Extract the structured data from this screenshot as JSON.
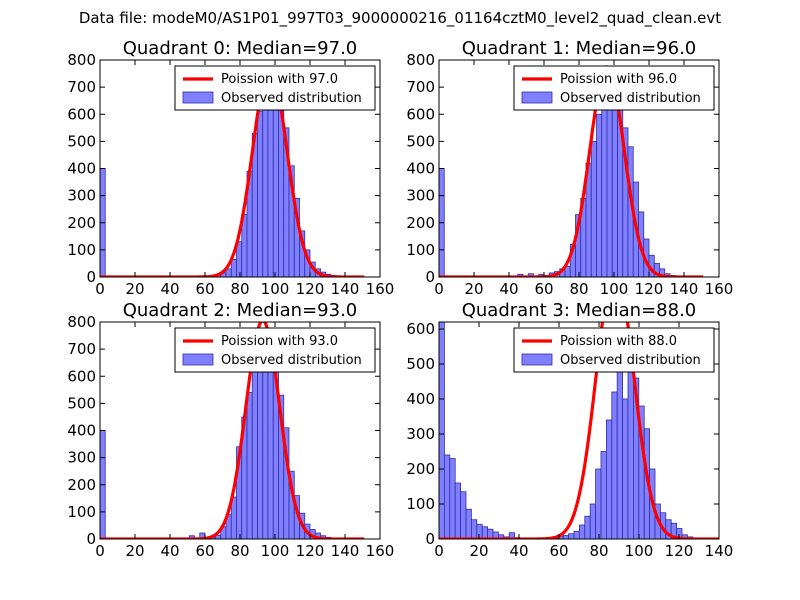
{
  "figure": {
    "suptitle": "Data file: modeM0/AS1P01_997T03_9000000216_01164cztM0_level2_quad_clean.evt"
  },
  "colors": {
    "bar_fill": "#8080ff",
    "bar_edge": "#2d2daa",
    "line": "#ff0000",
    "axis": "#000000"
  },
  "chart_data": [
    {
      "type": "bar",
      "title": "Quadrant 0: Median=97.0",
      "xlim": [
        0,
        160
      ],
      "ylim": [
        0,
        800
      ],
      "xticks": [
        0,
        20,
        40,
        60,
        80,
        100,
        120,
        140,
        160
      ],
      "yticks": [
        0,
        100,
        200,
        300,
        400,
        500,
        600,
        700,
        800
      ],
      "legend": [
        "Poission with 97.0",
        "Observed distribution"
      ],
      "bin_width": 3,
      "bins": [
        [
          0,
          400
        ],
        [
          3,
          2
        ],
        [
          6,
          1
        ],
        [
          60,
          2
        ],
        [
          63,
          5
        ],
        [
          66,
          8
        ],
        [
          69,
          15
        ],
        [
          72,
          30
        ],
        [
          75,
          65
        ],
        [
          78,
          130
        ],
        [
          81,
          230
        ],
        [
          84,
          390
        ],
        [
          87,
          530
        ],
        [
          90,
          610
        ],
        [
          93,
          700
        ],
        [
          96,
          740
        ],
        [
          99,
          730
        ],
        [
          102,
          680
        ],
        [
          105,
          550
        ],
        [
          108,
          410
        ],
        [
          111,
          290
        ],
        [
          114,
          170
        ],
        [
          117,
          100
        ],
        [
          120,
          55
        ],
        [
          123,
          30
        ],
        [
          126,
          18
        ],
        [
          129,
          10
        ],
        [
          132,
          6
        ],
        [
          135,
          4
        ],
        [
          138,
          3
        ],
        [
          141,
          1
        ]
      ],
      "poisson_mean": 97.0,
      "poisson_peak": 770,
      "poisson_x": [
        0,
        151
      ]
    },
    {
      "type": "bar",
      "title": "Quadrant 1: Median=96.0",
      "xlim": [
        0,
        160
      ],
      "ylim": [
        0,
        800
      ],
      "xticks": [
        0,
        20,
        40,
        60,
        80,
        100,
        120,
        140,
        160
      ],
      "yticks": [
        0,
        100,
        200,
        300,
        400,
        500,
        600,
        700,
        800
      ],
      "legend": [
        "Poission with 96.0",
        "Observed distribution"
      ],
      "bin_width": 3,
      "bins": [
        [
          0,
          400
        ],
        [
          3,
          3
        ],
        [
          45,
          10
        ],
        [
          51,
          12
        ],
        [
          57,
          10
        ],
        [
          63,
          15
        ],
        [
          66,
          20
        ],
        [
          69,
          30
        ],
        [
          72,
          40
        ],
        [
          75,
          120
        ],
        [
          78,
          230
        ],
        [
          81,
          290
        ],
        [
          84,
          420
        ],
        [
          87,
          500
        ],
        [
          90,
          600
        ],
        [
          93,
          700
        ],
        [
          96,
          750
        ],
        [
          99,
          720
        ],
        [
          102,
          650
        ],
        [
          105,
          550
        ],
        [
          108,
          480
        ],
        [
          111,
          350
        ],
        [
          114,
          240
        ],
        [
          117,
          140
        ],
        [
          120,
          80
        ],
        [
          123,
          50
        ],
        [
          126,
          30
        ],
        [
          129,
          12
        ],
        [
          132,
          6
        ]
      ],
      "poisson_mean": 96.0,
      "poisson_peak": 775,
      "poisson_x": [
        0,
        151
      ]
    },
    {
      "type": "bar",
      "title": "Quadrant 2: Median=93.0",
      "xlim": [
        0,
        160
      ],
      "ylim": [
        0,
        800
      ],
      "xticks": [
        0,
        20,
        40,
        60,
        80,
        100,
        120,
        140,
        160
      ],
      "yticks": [
        0,
        100,
        200,
        300,
        400,
        500,
        600,
        700,
        800
      ],
      "legend": [
        "Poission with 93.0",
        "Observed distribution"
      ],
      "bin_width": 3,
      "bins": [
        [
          0,
          400
        ],
        [
          3,
          2
        ],
        [
          51,
          12
        ],
        [
          57,
          22
        ],
        [
          60,
          2
        ],
        [
          63,
          6
        ],
        [
          66,
          14
        ],
        [
          69,
          45
        ],
        [
          72,
          90
        ],
        [
          75,
          155
        ],
        [
          78,
          340
        ],
        [
          81,
          450
        ],
        [
          84,
          540
        ],
        [
          87,
          650
        ],
        [
          90,
          700
        ],
        [
          93,
          740
        ],
        [
          96,
          730
        ],
        [
          99,
          650
        ],
        [
          102,
          530
        ],
        [
          105,
          410
        ],
        [
          108,
          250
        ],
        [
          111,
          160
        ],
        [
          114,
          95
        ],
        [
          117,
          55
        ],
        [
          120,
          35
        ],
        [
          123,
          22
        ],
        [
          126,
          12
        ],
        [
          129,
          6
        ],
        [
          132,
          3
        ],
        [
          135,
          2
        ]
      ],
      "poisson_mean": 93.0,
      "poisson_peak": 805,
      "poisson_x": [
        0,
        151
      ]
    },
    {
      "type": "bar",
      "title": "Quadrant 3: Median=88.0",
      "xlim": [
        0,
        140
      ],
      "ylim": [
        0,
        620
      ],
      "xticks": [
        0,
        20,
        40,
        60,
        80,
        100,
        120,
        140
      ],
      "yticks": [
        0,
        100,
        200,
        300,
        400,
        500,
        600
      ],
      "legend": [
        "Poission with 88.0",
        "Observed distribution"
      ],
      "bin_width": 2.7,
      "bins": [
        [
          0,
          620
        ],
        [
          2.7,
          240
        ],
        [
          5.4,
          230
        ],
        [
          8.1,
          160
        ],
        [
          10.8,
          135
        ],
        [
          13.5,
          85
        ],
        [
          16.2,
          55
        ],
        [
          18.9,
          42
        ],
        [
          21.6,
          35
        ],
        [
          24.3,
          28
        ],
        [
          27,
          20
        ],
        [
          29.7,
          12
        ],
        [
          32.4,
          6
        ],
        [
          35.1,
          18
        ],
        [
          37.8,
          4
        ],
        [
          40.5,
          3
        ],
        [
          48.6,
          3
        ],
        [
          51.3,
          3
        ],
        [
          54,
          3
        ],
        [
          56.7,
          5
        ],
        [
          59.4,
          8
        ],
        [
          62.1,
          10
        ],
        [
          64.8,
          15
        ],
        [
          67.5,
          22
        ],
        [
          70.2,
          40
        ],
        [
          72.9,
          65
        ],
        [
          75.6,
          100
        ],
        [
          78.3,
          200
        ],
        [
          81,
          250
        ],
        [
          83.7,
          340
        ],
        [
          86.4,
          420
        ],
        [
          89.1,
          530
        ],
        [
          91.8,
          400
        ],
        [
          94.5,
          520
        ],
        [
          97.2,
          460
        ],
        [
          99.9,
          380
        ],
        [
          102.6,
          315
        ],
        [
          105.3,
          200
        ],
        [
          108,
          100
        ],
        [
          110.7,
          75
        ],
        [
          113.4,
          55
        ],
        [
          116.1,
          45
        ],
        [
          118.8,
          30
        ],
        [
          121.5,
          12
        ],
        [
          124.2,
          6
        ]
      ],
      "poisson_mean": 88.0,
      "poisson_peak": 775,
      "poisson_x": [
        0,
        140
      ]
    }
  ]
}
